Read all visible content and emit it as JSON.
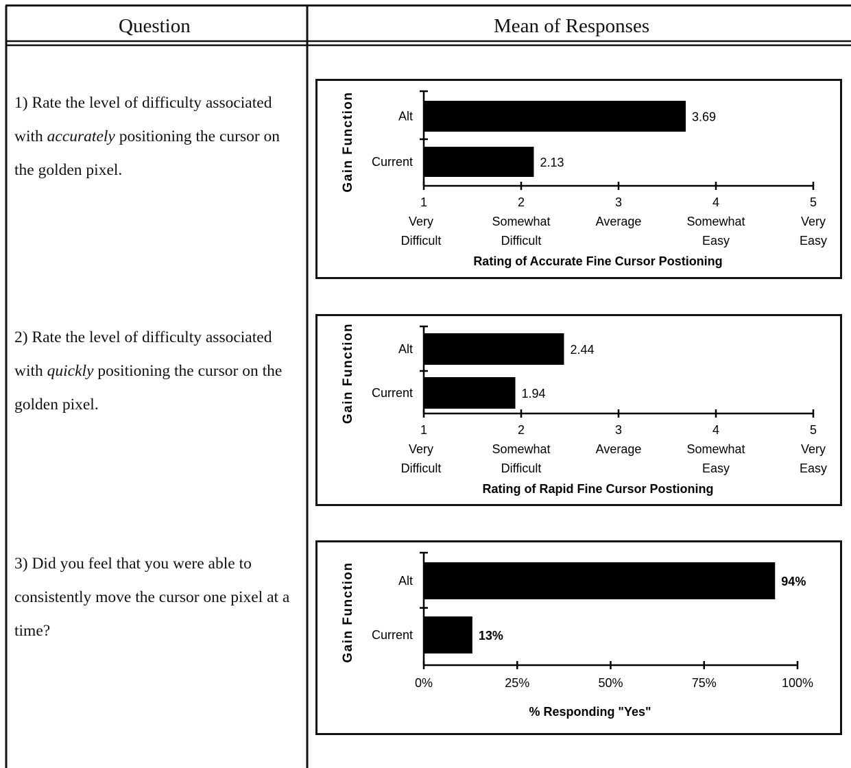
{
  "table": {
    "headers": {
      "question": "Question",
      "mean": "Mean of Responses"
    }
  },
  "questions": [
    {
      "before": "1) Rate the level of difficulty associated with ",
      "emphasis": "accurately",
      "after": " positioning the cursor on the golden pixel."
    },
    {
      "before": "2) Rate the level of difficulty associated with ",
      "emphasis": "quickly",
      "after": " positioning the cursor on the golden pixel."
    },
    {
      "before": "3) Did you feel that you were able to consistently move the cursor one pixel at a time?",
      "emphasis": "",
      "after": ""
    }
  ],
  "chart_data": [
    {
      "type": "bar",
      "orientation": "horizontal",
      "categories": [
        "Alt",
        "Current"
      ],
      "values": [
        3.69,
        2.13
      ],
      "value_labels": [
        "3.69",
        "2.13"
      ],
      "xlim": [
        1,
        5
      ],
      "xticks": [
        1,
        2,
        3,
        4,
        5
      ],
      "xtick_labels": [
        "1\nVery\nDifficult",
        "2\nSomewhat\nDifficult",
        "3\nAverage",
        "4\nSomewhat\nEasy",
        "5\nVery\nEasy"
      ],
      "xlabel": "Rating of Accurate Fine Cursor Postioning",
      "ylabel": "Gain Function",
      "bar_color": "#000000"
    },
    {
      "type": "bar",
      "orientation": "horizontal",
      "categories": [
        "Alt",
        "Current"
      ],
      "values": [
        2.44,
        1.94
      ],
      "value_labels": [
        "2.44",
        "1.94"
      ],
      "xlim": [
        1,
        5
      ],
      "xticks": [
        1,
        2,
        3,
        4,
        5
      ],
      "xtick_labels": [
        "1\nVery\nDifficult",
        "2\nSomewhat\nDifficult",
        "3\nAverage",
        "4\nSomewhat\nEasy",
        "5\nVery\nEasy"
      ],
      "xlabel": "Rating of Rapid Fine Cursor Postioning",
      "ylabel": "Gain Function",
      "bar_color": "#000000"
    },
    {
      "type": "bar",
      "orientation": "horizontal",
      "categories": [
        "Alt",
        "Current"
      ],
      "values": [
        94,
        13
      ],
      "value_labels": [
        "94%",
        "13%"
      ],
      "xlim": [
        0,
        100
      ],
      "xticks": [
        0,
        25,
        50,
        75,
        100
      ],
      "xtick_labels": [
        "0%",
        "25%",
        "50%",
        "75%",
        "100%"
      ],
      "xlabel": "% Responding \"Yes\"",
      "ylabel": "Gain Function",
      "bar_color": "#000000"
    }
  ]
}
